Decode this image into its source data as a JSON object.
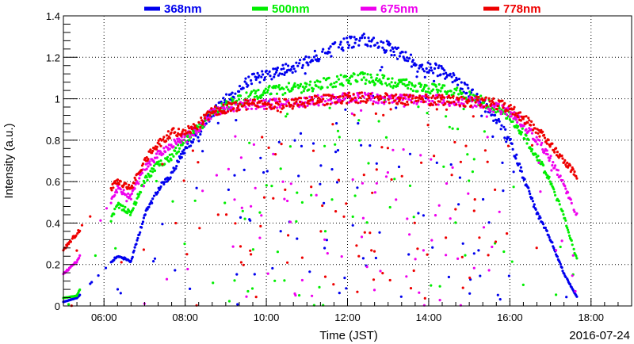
{
  "chart_data": {
    "type": "scatter",
    "title": "",
    "xlabel": "Time (JST)",
    "ylabel": "Intensity (a.u.)",
    "date_label": "2016-07-24",
    "xlim": [
      "05:00",
      "19:00"
    ],
    "ylim": [
      0,
      1.4
    ],
    "x_ticks": [
      "06:00",
      "08:00",
      "10:00",
      "12:00",
      "14:00",
      "16:00",
      "18:00"
    ],
    "y_ticks": [
      "0",
      "0.2",
      "0.4",
      "0.6",
      "0.8",
      "1",
      "1.2",
      "1.4"
    ],
    "grid": true,
    "legend_position": "top",
    "series": [
      {
        "name": "368nm",
        "color": "#0000ee",
        "envelope_x": [
          "05:00",
          "05:20",
          "06:20",
          "06:40",
          "07:00",
          "07:20",
          "07:40",
          "08:00",
          "08:20",
          "08:40",
          "09:00",
          "09:20",
          "09:40",
          "10:00",
          "10:20",
          "10:40",
          "11:00",
          "11:20",
          "11:40",
          "12:00",
          "12:20",
          "12:40",
          "13:00",
          "13:20",
          "13:40",
          "14:00",
          "14:20",
          "14:40",
          "15:00",
          "15:20",
          "15:40",
          "16:00",
          "16:20",
          "16:40",
          "17:00",
          "17:20",
          "17:40"
        ],
        "envelope_y": [
          0.02,
          0.04,
          0.25,
          0.22,
          0.45,
          0.58,
          0.65,
          0.78,
          0.86,
          0.95,
          1.02,
          1.08,
          1.12,
          1.14,
          1.17,
          1.18,
          1.22,
          1.24,
          1.27,
          1.3,
          1.32,
          1.3,
          1.28,
          1.24,
          1.2,
          1.18,
          1.16,
          1.12,
          1.06,
          1.0,
          0.92,
          0.82,
          0.64,
          0.46,
          0.33,
          0.16,
          0.04
        ]
      },
      {
        "name": "500nm",
        "color": "#00ee00",
        "envelope_x": [
          "05:00",
          "05:20",
          "06:20",
          "06:40",
          "07:00",
          "07:20",
          "07:40",
          "08:00",
          "08:20",
          "08:40",
          "09:00",
          "09:20",
          "09:40",
          "10:00",
          "10:20",
          "10:40",
          "11:00",
          "11:20",
          "11:40",
          "12:00",
          "12:20",
          "12:40",
          "13:00",
          "13:20",
          "13:40",
          "14:00",
          "14:20",
          "14:40",
          "15:00",
          "15:20",
          "15:40",
          "16:00",
          "16:20",
          "16:40",
          "17:00",
          "17:20",
          "17:40"
        ],
        "envelope_y": [
          0.04,
          0.05,
          0.5,
          0.46,
          0.62,
          0.7,
          0.74,
          0.82,
          0.88,
          0.96,
          0.99,
          1.02,
          1.04,
          1.06,
          1.07,
          1.08,
          1.08,
          1.1,
          1.11,
          1.12,
          1.13,
          1.12,
          1.11,
          1.1,
          1.09,
          1.08,
          1.07,
          1.06,
          1.04,
          1.01,
          0.98,
          0.94,
          0.85,
          0.74,
          0.62,
          0.44,
          0.22
        ]
      },
      {
        "name": "675nm",
        "color": "#ee00ee",
        "envelope_x": [
          "05:00",
          "05:20",
          "06:20",
          "06:40",
          "07:00",
          "07:20",
          "07:40",
          "08:00",
          "08:20",
          "08:40",
          "09:00",
          "09:20",
          "09:40",
          "10:00",
          "10:20",
          "10:40",
          "11:00",
          "11:20",
          "11:40",
          "12:00",
          "12:20",
          "12:40",
          "13:00",
          "13:20",
          "13:40",
          "14:00",
          "14:20",
          "14:40",
          "15:00",
          "15:20",
          "15:40",
          "16:00",
          "16:20",
          "16:40",
          "17:00",
          "17:20",
          "17:40"
        ],
        "envelope_y": [
          0.16,
          0.22,
          0.58,
          0.54,
          0.68,
          0.75,
          0.8,
          0.84,
          0.88,
          0.96,
          0.98,
          0.99,
          1.0,
          1.0,
          1.0,
          1.01,
          1.01,
          1.02,
          1.02,
          1.03,
          1.03,
          1.03,
          1.02,
          1.02,
          1.02,
          1.02,
          1.02,
          1.01,
          1.01,
          1.0,
          0.98,
          0.96,
          0.9,
          0.82,
          0.73,
          0.6,
          0.44
        ]
      },
      {
        "name": "778nm",
        "color": "#ee0000",
        "envelope_x": [
          "05:00",
          "05:20",
          "06:20",
          "06:40",
          "07:00",
          "07:20",
          "07:40",
          "08:00",
          "08:20",
          "08:40",
          "09:00",
          "09:20",
          "09:40",
          "10:00",
          "10:20",
          "10:40",
          "11:00",
          "11:20",
          "11:40",
          "12:00",
          "12:20",
          "12:40",
          "13:00",
          "13:20",
          "13:40",
          "14:00",
          "14:20",
          "14:40",
          "15:00",
          "15:20",
          "15:40",
          "16:00",
          "16:20",
          "16:40",
          "17:00",
          "17:20",
          "17:40"
        ],
        "envelope_y": [
          0.28,
          0.36,
          0.62,
          0.58,
          0.72,
          0.8,
          0.86,
          0.86,
          0.9,
          0.96,
          0.98,
          0.99,
          1.0,
          1.0,
          1.0,
          1.0,
          1.01,
          1.02,
          1.02,
          1.03,
          1.03,
          1.03,
          1.03,
          1.02,
          1.02,
          1.02,
          1.02,
          1.02,
          1.01,
          1.01,
          1.0,
          0.98,
          0.93,
          0.87,
          0.8,
          0.72,
          0.64
        ]
      }
    ],
    "scatter_note": "dense scatter; many points drop from the envelope toward 0 throughout the day"
  }
}
